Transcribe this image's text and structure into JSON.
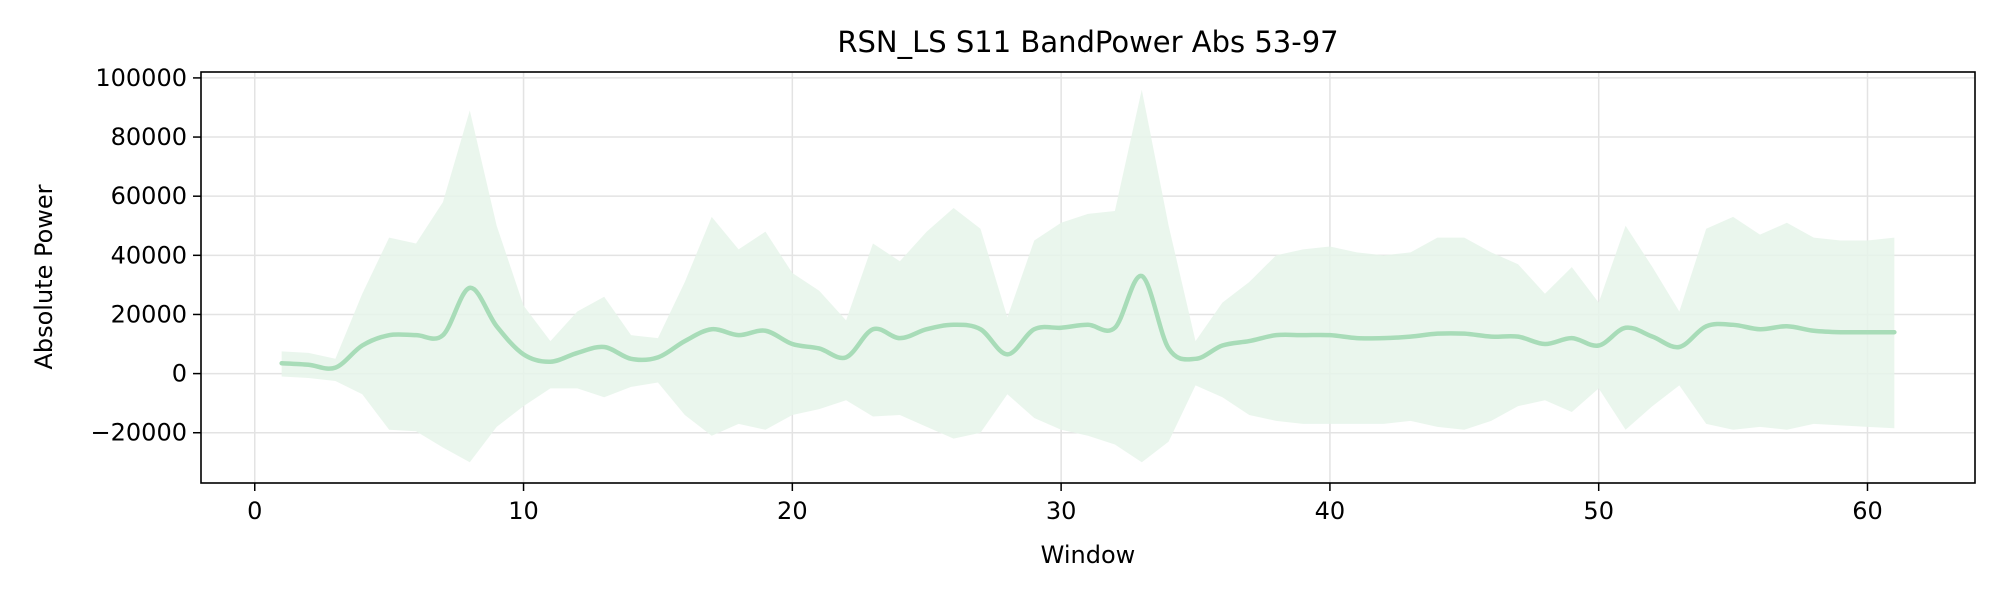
{
  "chart_data": {
    "type": "line",
    "title": "RSN_LS S11 BandPower Abs 53-97",
    "xlabel": "Window",
    "ylabel": "Absolute Power",
    "xlim": [
      -2,
      64
    ],
    "ylim": [
      -37000,
      102000
    ],
    "xticks": [
      0,
      10,
      20,
      30,
      40,
      50,
      60
    ],
    "yticks": [
      -20000,
      0,
      20000,
      40000,
      60000,
      80000,
      100000
    ],
    "ytick_labels": [
      "−20000",
      "0",
      "20000",
      "40000",
      "60000",
      "80000",
      "100000"
    ],
    "grid": true,
    "colors": {
      "line": "#a8dcb8",
      "band": "#e6f4ea"
    },
    "series": [
      {
        "x": [
          1,
          2,
          3,
          4,
          5,
          6,
          7,
          8,
          9,
          10,
          11,
          12,
          13,
          14,
          15,
          16,
          17,
          18,
          19,
          20,
          21,
          22,
          23,
          24,
          25,
          26,
          27,
          28,
          29,
          30,
          31,
          32,
          33,
          34,
          35,
          36,
          37,
          38,
          39,
          40,
          41,
          42,
          43,
          44,
          45,
          46,
          47,
          48,
          49,
          50,
          51,
          52,
          53,
          54,
          55,
          56,
          57,
          58,
          59,
          60,
          61
        ],
        "mean": [
          3500,
          3000,
          2000,
          9500,
          13000,
          13000,
          13000,
          29000,
          16000,
          6500,
          4000,
          7000,
          9000,
          5000,
          5500,
          11000,
          15000,
          13000,
          14500,
          10000,
          8500,
          5500,
          15000,
          12000,
          15000,
          16500,
          15000,
          6500,
          15000,
          15500,
          16500,
          15500,
          33000,
          8500,
          5000,
          9500,
          11000,
          13000,
          13000,
          13000,
          12000,
          12000,
          12500,
          13500,
          13500,
          12500,
          12500,
          10000,
          12000,
          9500,
          15500,
          12500,
          9000,
          16000,
          16500,
          15000,
          16000,
          14500,
          14000,
          14000,
          14000
        ],
        "upper": [
          7500,
          7000,
          5000,
          27000,
          46000,
          44000,
          58000,
          89000,
          50000,
          23000,
          11000,
          21000,
          26000,
          13000,
          12000,
          31000,
          53000,
          42000,
          48000,
          34000,
          28000,
          18000,
          44000,
          38000,
          48000,
          56000,
          49000,
          19000,
          45000,
          51000,
          54000,
          55000,
          96000,
          50000,
          11000,
          24000,
          31000,
          40000,
          42000,
          43000,
          41000,
          40000,
          41000,
          46000,
          46000,
          41000,
          37000,
          27000,
          36000,
          24000,
          50000,
          36000,
          21000,
          49000,
          53000,
          47000,
          51000,
          46000,
          45000,
          45000,
          46000
        ],
        "lower": [
          -1000,
          -1500,
          -2500,
          -7000,
          -19000,
          -19500,
          -25000,
          -30000,
          -18000,
          -11000,
          -5000,
          -5000,
          -8000,
          -4500,
          -3000,
          -14000,
          -21000,
          -17000,
          -19000,
          -14000,
          -12000,
          -9000,
          -14500,
          -14000,
          -18000,
          -22000,
          -20000,
          -7000,
          -15000,
          -19000,
          -21000,
          -24000,
          -30000,
          -23000,
          -4000,
          -8000,
          -14000,
          -16000,
          -17000,
          -17000,
          -17000,
          -17000,
          -16000,
          -18000,
          -19000,
          -16000,
          -11000,
          -9000,
          -13000,
          -5000,
          -19000,
          -11000,
          -4000,
          -17000,
          -19000,
          -18000,
          -19000,
          -17000,
          -17500,
          -18000,
          -18500
        ]
      }
    ]
  }
}
